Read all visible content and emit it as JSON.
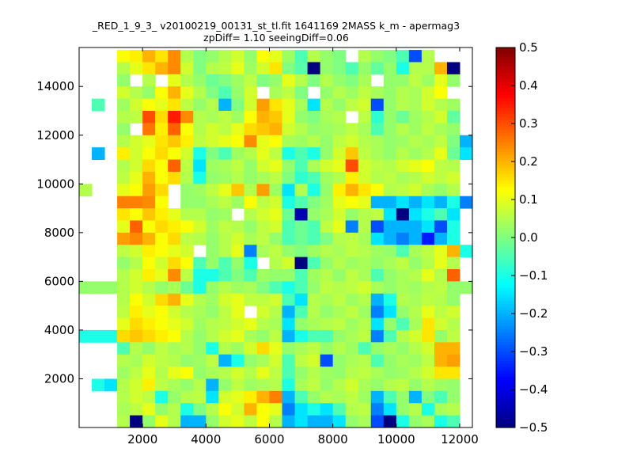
{
  "chart_data": {
    "type": "heatmap",
    "title": "_RED_1_9_3_ v20100219_00131_st_tl.fit 1641169 2MASS k_m - apermag3",
    "subtitle": "zpDiff= 1.10 seeingDiff=0.06",
    "xlabel": "",
    "ylabel": "",
    "xlim": [
      0,
      12400
    ],
    "ylim": [
      0,
      15600
    ],
    "xticks": [
      2000,
      4000,
      6000,
      8000,
      10000,
      12000
    ],
    "xtick_labels": [
      "2000",
      "4000",
      "6000",
      "8000",
      "10000",
      "12000"
    ],
    "yticks": [
      2000,
      4000,
      6000,
      8000,
      10000,
      12000,
      14000
    ],
    "ytick_labels": [
      "2000",
      "4000",
      "6000",
      "8000",
      "10000",
      "12000",
      "14000"
    ],
    "x_bin_edges": [
      0,
      400,
      800,
      1200,
      1600,
      2000,
      2400,
      2800,
      3200,
      3600,
      4000,
      4400,
      4800,
      5200,
      5600,
      6000,
      6400,
      6800,
      7200,
      7600,
      8000,
      8400,
      8800,
      9200,
      9600,
      10000,
      10400,
      10800,
      11200,
      11600,
      12000,
      12400
    ],
    "y_bin_edges": [
      0,
      500,
      1000,
      1500,
      2000,
      2500,
      3000,
      3500,
      4000,
      4500,
      5000,
      5500,
      6000,
      6500,
      7000,
      7500,
      8000,
      8500,
      9000,
      9500,
      10000,
      10500,
      11000,
      11500,
      12000,
      12500,
      13000,
      13500,
      14000,
      14500,
      15000,
      15500
    ],
    "values_row_order": "top-to-bottom",
    "values": [
      [
        null,
        null,
        null,
        0.12,
        0.14,
        0.2,
        0.15,
        0.24,
        0.05,
        0,
        0.02,
        0.05,
        0.08,
        0.02,
        0.12,
        0.1,
        0.03,
        -0.05,
        0.05,
        0.02,
        0,
        null,
        0.05,
        0.02,
        0,
        -0.05,
        -0.3,
        0.05,
        null,
        null,
        null
      ],
      [
        null,
        null,
        null,
        0.05,
        0.1,
        0.15,
        0.2,
        0.24,
        0.08,
        0,
        0.05,
        0.06,
        0.1,
        0.03,
        0.08,
        0.15,
        0,
        -0.04,
        -0.5,
        0.02,
        0,
        -0.05,
        0.02,
        -0.03,
        0.02,
        -0.1,
        0.05,
        0.05,
        0.2,
        -0.5,
        null
      ],
      [
        null,
        null,
        null,
        0.02,
        null,
        0.05,
        null,
        0.1,
        0.05,
        0.02,
        -0.02,
        0,
        0.03,
        0.06,
        0,
        0.02,
        0.1,
        0.05,
        0,
        0.05,
        0.02,
        0,
        0.04,
        null,
        0.02,
        0.02,
        0.06,
        0.03,
        0.1,
        0.02,
        null
      ],
      [
        null,
        null,
        null,
        0.08,
        0.05,
        0.02,
        0.12,
        0.2,
        0.1,
        0.05,
        0,
        -0.05,
        0.02,
        0.08,
        null,
        0.04,
        0.06,
        0,
        null,
        0.02,
        0.05,
        0.03,
        0.06,
        0.04,
        0.02,
        0.05,
        0.04,
        0.08,
        0.12,
        null,
        null
      ],
      [
        null,
        -0.05,
        null,
        0.03,
        0.08,
        0.12,
        0.1,
        0.15,
        0.06,
        0.02,
        0.05,
        -0.2,
        0,
        0.08,
        0.22,
        0.15,
        0.1,
        0.04,
        -0.15,
        0.05,
        0.02,
        0.06,
        0.08,
        -0.3,
        0.02,
        0.05,
        0.04,
        0.08,
        0.05,
        0.03,
        null
      ],
      [
        null,
        null,
        null,
        0.05,
        0.06,
        0.3,
        0.16,
        0.35,
        0.24,
        0.05,
        0.04,
        0.06,
        0.03,
        0.12,
        0.2,
        0.18,
        0.1,
        0.02,
        0,
        0.04,
        0.05,
        null,
        0.06,
        -0.08,
        0.02,
        -0.02,
        0.03,
        0.05,
        0.08,
        -0.03,
        null
      ],
      [
        null,
        null,
        null,
        0.02,
        null,
        0.26,
        0.14,
        0.28,
        0.12,
        0.05,
        0.08,
        0.06,
        0.1,
        0.16,
        0.18,
        0.2,
        0.08,
        0.05,
        0.02,
        0.03,
        0.04,
        0.06,
        0.04,
        -0.05,
        0.02,
        0.05,
        0.03,
        0.06,
        0.04,
        0.02,
        null
      ],
      [
        null,
        null,
        null,
        0.05,
        0.08,
        0.1,
        0.15,
        0.18,
        0.14,
        0.06,
        0.08,
        0.1,
        0.12,
        0.24,
        0.1,
        0.12,
        0.04,
        0.03,
        0.05,
        0.02,
        0.06,
        0.08,
        0.05,
        0.04,
        0.02,
        0.03,
        0.05,
        0.04,
        0.06,
        0,
        -0.2
      ],
      [
        null,
        -0.2,
        null,
        0.14,
        0.08,
        0.12,
        0.16,
        0.12,
        0.08,
        -0.1,
        0,
        -0.05,
        0.03,
        0.05,
        0.1,
        0.06,
        -0.1,
        -0.05,
        -0.1,
        0.02,
        0.08,
        0.18,
        0.06,
        0.04,
        0.02,
        0.05,
        0.03,
        0.05,
        0.1,
        -0.02,
        -0.15
      ],
      [
        null,
        null,
        null,
        0.05,
        0.08,
        0.16,
        0.12,
        0.28,
        0.06,
        -0.15,
        0.03,
        0.04,
        0.06,
        0.02,
        0.08,
        0.1,
        0.02,
        -0.05,
        0.04,
        0.08,
        0.1,
        0.3,
        0.08,
        0.06,
        0.05,
        0.08,
        0.1,
        0.12,
        0.06,
        0.05,
        null
      ],
      [
        null,
        null,
        null,
        0.06,
        0.1,
        0.2,
        0.12,
        0.16,
        0.05,
        -0.1,
        0.02,
        0.03,
        0.05,
        0.02,
        0.04,
        0.06,
        0,
        -0.08,
        -0.05,
        0.03,
        0.05,
        0.14,
        0.08,
        0.05,
        0.06,
        0.04,
        0.05,
        0.08,
        0.06,
        0.08,
        null
      ],
      [
        0.05,
        null,
        null,
        0.1,
        0.12,
        0.22,
        0.16,
        null,
        0.02,
        0.03,
        0.06,
        0.1,
        0.18,
        0.05,
        0.22,
        0.03,
        -0.15,
        0.05,
        -0.1,
        0.02,
        0.14,
        0.2,
        0.15,
        0.12,
        0.05,
        0.06,
        0.08,
        0.04,
        0.02,
        0.05,
        null
      ],
      [
        null,
        null,
        null,
        0.25,
        0.25,
        0.24,
        0.12,
        null,
        0.02,
        0.02,
        0.04,
        0.06,
        0.03,
        0.12,
        0.06,
        0.08,
        -0.1,
        -0.05,
        0,
        0.03,
        0.1,
        0.12,
        0.1,
        -0.2,
        -0.2,
        -0.15,
        -0.2,
        -0.15,
        -0.2,
        -0.1,
        -0.25
      ],
      [
        null,
        null,
        null,
        0.15,
        0.12,
        0.18,
        0.14,
        0.1,
        0.05,
        0.05,
        0.02,
        0.03,
        null,
        0.05,
        0.08,
        0.1,
        -0.02,
        -0.45,
        0.02,
        0.04,
        0.08,
        0.02,
        0.05,
        0.06,
        -0.15,
        -0.5,
        -0.15,
        -0.1,
        -0.05,
        -0.15,
        null
      ],
      [
        null,
        null,
        null,
        0.1,
        0.28,
        0.12,
        0.16,
        0.14,
        0.12,
        0.08,
        0.03,
        0.06,
        0.05,
        0.02,
        0.06,
        0.08,
        -0.05,
        -0.02,
        -0.05,
        0.06,
        0.1,
        -0.25,
        0.05,
        -0.3,
        -0.2,
        -0.2,
        -0.2,
        -0.15,
        -0.3,
        -0.1,
        null
      ],
      [
        null,
        null,
        null,
        0.22,
        0.24,
        0.2,
        0.12,
        0.16,
        0.06,
        0.05,
        0.02,
        0.05,
        0.08,
        0.04,
        0.06,
        0.02,
        -0.05,
        -0.02,
        -0.05,
        0,
        0.05,
        0.06,
        0.04,
        -0.15,
        -0.2,
        -0.25,
        -0.2,
        -0.35,
        -0.2,
        -0.1,
        null
      ],
      [
        null,
        null,
        null,
        0.06,
        0.08,
        0.14,
        0.12,
        0.1,
        0.08,
        null,
        0.02,
        0.05,
        0.1,
        -0.25,
        0.04,
        0.06,
        0.02,
        0,
        0.03,
        0.05,
        0.04,
        0.06,
        0.05,
        0.03,
        0.02,
        -0.05,
        0.04,
        0.06,
        0.1,
        0.2,
        -0.1
      ],
      [
        null,
        null,
        null,
        0.02,
        0.05,
        0.12,
        0.08,
        0.16,
        0.12,
        -0.05,
        0.02,
        -0.05,
        0.02,
        -0.1,
        null,
        0.05,
        0.08,
        -0.5,
        -0.05,
        0.02,
        0.05,
        0.03,
        0.04,
        0.02,
        0.04,
        0.06,
        0.02,
        0.05,
        0.1,
        0.05,
        null
      ],
      [
        null,
        null,
        null,
        0.05,
        0.08,
        0.14,
        0.1,
        0.24,
        0.06,
        -0.1,
        -0.1,
        -0.05,
        0,
        -0.05,
        0.03,
        0.02,
        0.02,
        -0.05,
        0.03,
        0.05,
        0.02,
        0.06,
        0.04,
        -0.05,
        0.02,
        0.04,
        0.05,
        0.1,
        0.05,
        0.28,
        null
      ],
      [
        0.02,
        0.02,
        0.02,
        0.05,
        0.08,
        0.05,
        0.02,
        0.04,
        -0.02,
        -0.1,
        0.02,
        0.05,
        0.03,
        0.04,
        0,
        -0.05,
        -0.1,
        -0.05,
        0.02,
        0.06,
        0.05,
        0.06,
        0.08,
        0.04,
        0.02,
        0.04,
        0.03,
        0.05,
        0.06,
        0.02,
        0.02
      ],
      [
        null,
        null,
        null,
        0.05,
        0.12,
        0.08,
        0.16,
        0.2,
        0.1,
        0.05,
        0.03,
        0.08,
        0.1,
        0.06,
        0.06,
        0.08,
        -0.05,
        -0.15,
        0.05,
        0.04,
        0.06,
        0.03,
        0.05,
        -0.2,
        -0.1,
        0.05,
        0.04,
        0.06,
        0.05,
        0.02,
        null
      ],
      [
        null,
        null,
        null,
        0.06,
        0.14,
        0.1,
        0.12,
        0.08,
        0.05,
        0.04,
        0.02,
        0.06,
        0.1,
        null,
        0.08,
        0.05,
        -0.2,
        -0.05,
        0.05,
        0.02,
        0.04,
        0.06,
        0.03,
        -0.25,
        -0.15,
        0.02,
        0.05,
        0.1,
        0.06,
        0.08,
        null
      ],
      [
        null,
        null,
        null,
        0.1,
        0.16,
        0.14,
        0.12,
        0.1,
        0.08,
        0.03,
        0.05,
        0.06,
        0.08,
        0.1,
        0.05,
        0.04,
        -0.15,
        0.02,
        0.04,
        0.05,
        0.06,
        0.03,
        0.05,
        -0.15,
        0.02,
        -0.05,
        0.04,
        0.15,
        0.08,
        0.05,
        null
      ],
      [
        -0.1,
        -0.1,
        -0.1,
        0.16,
        0.18,
        0.16,
        0.14,
        0.12,
        0.05,
        0.02,
        0.05,
        0.08,
        0.1,
        0.04,
        0.02,
        0.06,
        -0.2,
        -0.1,
        -0.05,
        -0.05,
        0.02,
        0.04,
        0.06,
        -0.25,
        -0.05,
        0.05,
        0.08,
        0.15,
        0.02,
        0.06,
        null
      ],
      [
        null,
        null,
        null,
        -0.05,
        0.05,
        0.02,
        0.06,
        0.04,
        0.05,
        0.02,
        -0.1,
        0.05,
        0.03,
        0.08,
        0.16,
        0.1,
        0.02,
        0.04,
        0.06,
        0.02,
        0.05,
        0.03,
        -0.05,
        0.02,
        0.04,
        0.02,
        0.05,
        0.08,
        0.2,
        0.2,
        null
      ],
      [
        null,
        null,
        null,
        0.05,
        0.04,
        0.08,
        0.06,
        0.05,
        0.02,
        0.03,
        0.06,
        -0.2,
        -0.1,
        0.02,
        0.04,
        0.08,
        -0.05,
        0.06,
        0.08,
        -0.3,
        0.02,
        0.04,
        0.05,
        -0.05,
        0.02,
        0.04,
        0.03,
        0.06,
        0.2,
        0.22,
        null
      ],
      [
        null,
        null,
        null,
        0.03,
        0.06,
        0.1,
        0.05,
        0.1,
        0.12,
        0.02,
        0.04,
        0.05,
        0.08,
        0.05,
        0.1,
        0.06,
        -0.05,
        0.02,
        0.05,
        0.03,
        0.02,
        0.05,
        0.06,
        0.04,
        0.02,
        0.03,
        0.05,
        0.08,
        0.15,
        0.15,
        null
      ],
      [
        null,
        -0.1,
        -0.15,
        0.05,
        0.08,
        0.14,
        0.06,
        0.04,
        0.02,
        0.05,
        -0.2,
        0.02,
        0.06,
        0.03,
        0.04,
        0.05,
        -0.1,
        0.04,
        0.06,
        0.02,
        0.05,
        0.08,
        0.04,
        0.02,
        0.05,
        0.06,
        0.02,
        0.05,
        0.03,
        0.02,
        null
      ],
      [
        null,
        null,
        null,
        0.05,
        0.08,
        0.06,
        -0.1,
        0.02,
        0.05,
        0.06,
        -0.15,
        0.08,
        0.1,
        0.14,
        0.2,
        0.25,
        -0.2,
        -0.05,
        0.02,
        0.05,
        0.04,
        0.06,
        0.03,
        -0.2,
        -0.05,
        0.02,
        -0.2,
        0,
        -0.05,
        0.02,
        null
      ],
      [
        null,
        null,
        null,
        0.04,
        0.06,
        0.1,
        0.02,
        0.05,
        -0.1,
        0,
        0.05,
        0.12,
        0.08,
        0.2,
        0.12,
        0.1,
        -0.25,
        -0.15,
        -0.1,
        -0.15,
        -0.05,
        0.05,
        0.06,
        -0.25,
        -0.15,
        0.02,
        0.05,
        -0.1,
        0.04,
        0.05,
        null
      ],
      [
        null,
        null,
        null,
        0.05,
        -0.5,
        0.02,
        0.1,
        0.05,
        -0.2,
        -0.2,
        0.02,
        0.08,
        0.1,
        0.06,
        0.12,
        0.05,
        -0.2,
        -0.15,
        -0.2,
        -0.2,
        -0.15,
        0.02,
        0.04,
        -0.3,
        -0.5,
        -0.1,
        0.02,
        0.04,
        -0.1,
        -0.05,
        null
      ]
    ],
    "colormap": "jet",
    "colorbar": {
      "min": -0.5,
      "max": 0.5,
      "ticks": [
        0.5,
        0.4,
        0.3,
        0.2,
        0.1,
        0.0,
        -0.1,
        -0.2,
        -0.3,
        -0.4,
        -0.5
      ],
      "tick_labels": [
        "0.5",
        "0.4",
        "0.3",
        "0.2",
        "0.1",
        "0.0",
        "−0.1",
        "−0.2",
        "−0.3",
        "−0.4",
        "−0.5"
      ]
    },
    "grid": false,
    "legend": "none"
  }
}
